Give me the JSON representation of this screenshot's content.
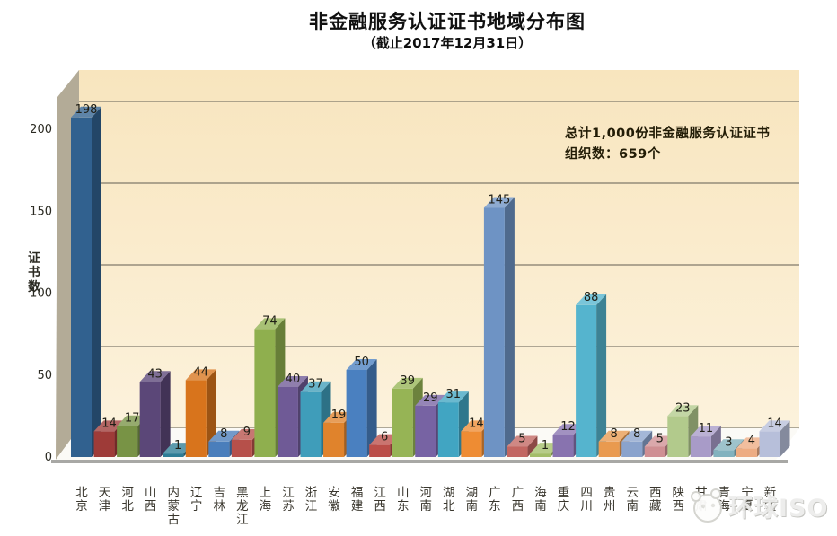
{
  "page": {
    "title": "非金融服务认证证书地域分布图",
    "subtitle": "（截止2017年12月31日）"
  },
  "chart_data": {
    "type": "bar",
    "style": "3d",
    "title": "非金融服务认证证书地域分布图",
    "subtitle": "（截止2017年12月31日）",
    "xlabel": "",
    "ylabel": "证书数",
    "ylim": [
      0,
      210
    ],
    "y_ticks": [
      0,
      50,
      100,
      150,
      200
    ],
    "grid": true,
    "legend": "none",
    "categories": [
      "北京",
      "天津",
      "河北",
      "山西",
      "内蒙古",
      "辽宁",
      "吉林",
      "黑龙江",
      "上海",
      "江苏",
      "浙江",
      "安徽",
      "福建",
      "江西",
      "山东",
      "河南",
      "湖北",
      "湖南",
      "广东",
      "广西",
      "海南",
      "重庆",
      "四川",
      "贵州",
      "云南",
      "西藏",
      "陕西",
      "甘肃",
      "青海",
      "宁夏",
      "新疆"
    ],
    "values": [
      198,
      14,
      17,
      43,
      1,
      44,
      8,
      9,
      74,
      40,
      37,
      19,
      50,
      6,
      39,
      29,
      31,
      14,
      145,
      5,
      1,
      12,
      88,
      8,
      8,
      5,
      23,
      11,
      3,
      4,
      14
    ],
    "bar_colors": [
      "#31618F",
      "#9E3B38",
      "#789345",
      "#5B4778",
      "#2E7D95",
      "#D8741C",
      "#4A7EBB",
      "#B6504A",
      "#8FAF4E",
      "#6F5A96",
      "#3F9DBA",
      "#E0832C",
      "#4A80C0",
      "#BB4E48",
      "#96B455",
      "#7763A3",
      "#41A5C2",
      "#EE8C33",
      "#6E93C4",
      "#C26661",
      "#A3BD68",
      "#8873AF",
      "#55B4CE",
      "#E99A4F",
      "#8AA3CC",
      "#CF8F93",
      "#B2CA8C",
      "#A89BC8",
      "#82B2BE",
      "#EDAC82",
      "#B7BFDA"
    ],
    "annotation": {
      "line1": "总计1,000份非金融服务认证证书",
      "line2": "组织数：659个"
    },
    "colors": {
      "wall_top": "#F8E5BE",
      "wall_bottom": "#FCF2DC",
      "side_wall": "#B3AB97",
      "floor": "#FBFAF6",
      "floor_edge": "#A8A8A5",
      "gridline": "#615D52",
      "value_label": "#201F16",
      "tick_label": "#2B2A22",
      "category_label": "#3A372E"
    }
  },
  "watermark": {
    "text": "环球ISO",
    "logo": "panda-logo"
  }
}
